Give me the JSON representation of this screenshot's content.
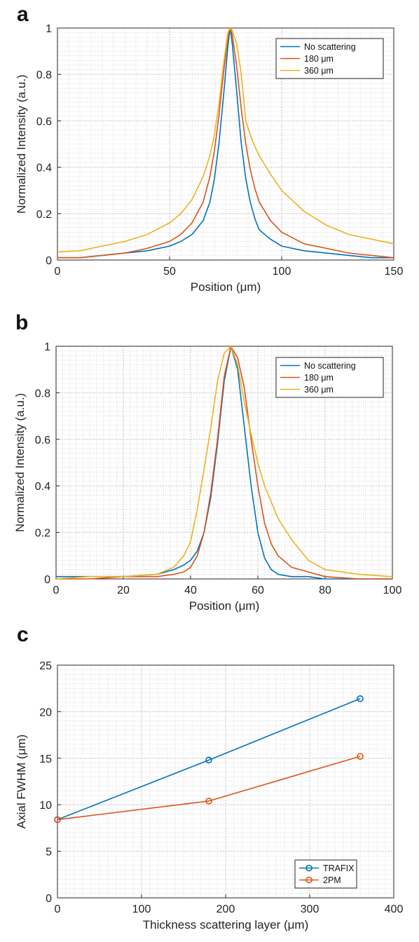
{
  "colors": {
    "blue": "#0072BD",
    "orange": "#D95319",
    "yellow": "#EDB120",
    "grid": "#c8c8c8",
    "axis": "#262626"
  },
  "chart_data": [
    {
      "panel": "a",
      "type": "line",
      "xlabel": "Position (μm)",
      "ylabel": "Normalized Intensity (a.u.)",
      "xlim": [
        0,
        150
      ],
      "ylim": [
        0,
        1
      ],
      "xticks": [
        0,
        50,
        100,
        150
      ],
      "yticks": [
        0,
        0.2,
        0.4,
        0.6,
        0.8,
        1
      ],
      "grid": true,
      "legend": "top-right",
      "series": [
        {
          "name": "No scattering",
          "color": "#0072BD",
          "x": [
            0,
            10,
            20,
            30,
            40,
            50,
            55,
            60,
            65,
            68,
            70,
            72,
            74,
            76,
            77,
            78,
            80,
            82,
            84,
            86,
            88,
            90,
            95,
            100,
            110,
            120,
            130,
            140,
            150
          ],
          "y": [
            0.01,
            0.01,
            0.02,
            0.03,
            0.04,
            0.06,
            0.08,
            0.11,
            0.17,
            0.25,
            0.35,
            0.5,
            0.7,
            0.92,
            1.0,
            0.93,
            0.72,
            0.5,
            0.35,
            0.25,
            0.18,
            0.13,
            0.09,
            0.06,
            0.04,
            0.03,
            0.02,
            0.01,
            0.01
          ]
        },
        {
          "name": "180 μm",
          "color": "#D95319",
          "x": [
            0,
            10,
            20,
            30,
            40,
            50,
            55,
            60,
            65,
            68,
            70,
            72,
            74,
            76,
            77,
            78,
            80,
            82,
            84,
            86,
            88,
            90,
            95,
            100,
            110,
            120,
            130,
            140,
            150
          ],
          "y": [
            0.01,
            0.01,
            0.02,
            0.03,
            0.05,
            0.08,
            0.11,
            0.16,
            0.25,
            0.36,
            0.47,
            0.62,
            0.8,
            0.96,
            1.0,
            0.97,
            0.83,
            0.65,
            0.5,
            0.39,
            0.31,
            0.25,
            0.17,
            0.12,
            0.07,
            0.05,
            0.03,
            0.02,
            0.01
          ]
        },
        {
          "name": "360 μm",
          "color": "#EDB120",
          "x": [
            0,
            10,
            20,
            30,
            40,
            50,
            55,
            60,
            65,
            68,
            70,
            72,
            74,
            76,
            77,
            78,
            80,
            82,
            84,
            86,
            88,
            90,
            95,
            100,
            110,
            120,
            130,
            140,
            150
          ],
          "y": [
            0.035,
            0.04,
            0.06,
            0.08,
            0.11,
            0.16,
            0.2,
            0.26,
            0.36,
            0.45,
            0.54,
            0.67,
            0.84,
            0.98,
            1.0,
            0.99,
            0.93,
            0.8,
            0.6,
            0.54,
            0.49,
            0.45,
            0.37,
            0.3,
            0.21,
            0.15,
            0.11,
            0.09,
            0.07
          ]
        }
      ]
    },
    {
      "panel": "b",
      "type": "line",
      "xlabel": "Position (μm)",
      "ylabel": "Normalized Intensity (a.u.)",
      "xlim": [
        0,
        100
      ],
      "ylim": [
        0,
        1
      ],
      "xticks": [
        0,
        20,
        40,
        60,
        80,
        100
      ],
      "yticks": [
        0,
        0.2,
        0.4,
        0.6,
        0.8,
        1
      ],
      "grid": true,
      "legend": "top-right",
      "series": [
        {
          "name": "No scattering",
          "color": "#0072BD",
          "x": [
            0,
            10,
            20,
            30,
            35,
            38,
            40,
            42,
            44,
            46,
            48,
            50,
            52,
            54,
            56,
            58,
            60,
            62,
            64,
            66,
            70,
            75,
            80,
            90,
            100
          ],
          "y": [
            0.01,
            0.01,
            0.01,
            0.02,
            0.04,
            0.06,
            0.08,
            0.12,
            0.2,
            0.35,
            0.58,
            0.85,
            1.0,
            0.9,
            0.65,
            0.4,
            0.2,
            0.09,
            0.04,
            0.02,
            0.01,
            0.01,
            0.0,
            0.0,
            0.0
          ]
        },
        {
          "name": "180 μm",
          "color": "#D95319",
          "x": [
            0,
            10,
            20,
            30,
            35,
            38,
            40,
            42,
            44,
            46,
            48,
            50,
            52,
            54,
            56,
            58,
            60,
            62,
            64,
            66,
            70,
            75,
            80,
            90,
            100
          ],
          "y": [
            0.0,
            0.0,
            0.01,
            0.01,
            0.02,
            0.03,
            0.05,
            0.1,
            0.2,
            0.37,
            0.6,
            0.87,
            1.0,
            0.95,
            0.82,
            0.6,
            0.4,
            0.24,
            0.15,
            0.1,
            0.05,
            0.03,
            0.01,
            0.0,
            0.0
          ]
        },
        {
          "name": "360 μm",
          "color": "#EDB120",
          "x": [
            0,
            10,
            20,
            30,
            35,
            38,
            40,
            42,
            44,
            46,
            48,
            50,
            52,
            54,
            56,
            58,
            60,
            62,
            64,
            66,
            70,
            75,
            80,
            90,
            100
          ],
          "y": [
            0.0,
            0.01,
            0.01,
            0.02,
            0.05,
            0.1,
            0.16,
            0.3,
            0.47,
            0.65,
            0.85,
            0.97,
            1.0,
            0.92,
            0.76,
            0.62,
            0.5,
            0.4,
            0.33,
            0.26,
            0.17,
            0.08,
            0.04,
            0.02,
            0.01
          ]
        }
      ]
    },
    {
      "panel": "c",
      "type": "line",
      "xlabel": "Thickness scattering layer (μm)",
      "ylabel": "Axial FWHM (μm)",
      "xlim": [
        0,
        400
      ],
      "ylim": [
        0,
        25
      ],
      "xticks": [
        0,
        100,
        200,
        300,
        400
      ],
      "yticks": [
        0,
        5,
        10,
        15,
        20,
        25
      ],
      "grid": true,
      "legend": "bottom-right",
      "markers": true,
      "series": [
        {
          "name": "TRAFIX",
          "color": "#0072BD",
          "x": [
            0,
            180,
            360
          ],
          "y": [
            8.4,
            14.8,
            21.4
          ]
        },
        {
          "name": "2PM",
          "color": "#D95319",
          "x": [
            0,
            180,
            360
          ],
          "y": [
            8.4,
            10.4,
            15.2
          ]
        }
      ]
    }
  ]
}
